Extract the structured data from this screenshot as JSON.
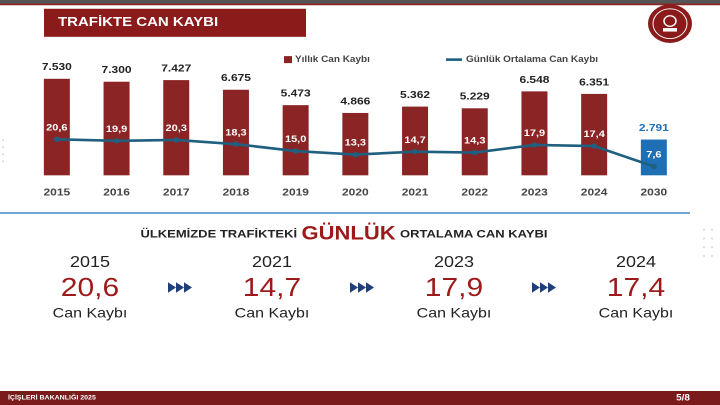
{
  "header": {
    "title": "TRAFİKTE CAN KAYBI"
  },
  "chart_data": {
    "type": "bar",
    "categories": [
      "2015",
      "2016",
      "2017",
      "2018",
      "2019",
      "2020",
      "2021",
      "2022",
      "2023",
      "2024",
      "2030"
    ],
    "ylim": [
      0,
      8000
    ],
    "y2lim": [
      0,
      50
    ],
    "series": [
      {
        "name": "Yıllık Can Kaybı",
        "type": "bar",
        "color": "#8b2525",
        "value_colors": [
          "#8b2525",
          "#8b2525",
          "#8b2525",
          "#8b2525",
          "#8b2525",
          "#8b2525",
          "#8b2525",
          "#8b2525",
          "#8b2525",
          "#8b2525",
          "#1f6fb5"
        ],
        "values": [
          7530,
          7300,
          7427,
          6675,
          5473,
          4866,
          5362,
          5229,
          6548,
          6351,
          2791
        ],
        "value_labels": [
          "7.530",
          "7.300",
          "7.427",
          "6.675",
          "5.473",
          "4.866",
          "5.362",
          "5.229",
          "6.548",
          "6.351",
          "2.791"
        ]
      },
      {
        "name": "Günlük Ortalama Can Kaybı",
        "type": "line",
        "axis": "y2",
        "color": "#1f5f80",
        "values": [
          20.6,
          19.9,
          20.3,
          18.3,
          15.0,
          13.3,
          14.7,
          14.3,
          17.9,
          17.4,
          7.6
        ],
        "value_labels": [
          "20,6",
          "19,9",
          "20,3",
          "18,3",
          "15,0",
          "13,3",
          "14,7",
          "14,3",
          "17,9",
          "17,4",
          "7,6"
        ]
      }
    ]
  },
  "summary": {
    "headline": [
      "ÜLKEMİZDE TRAFİKTEKİ",
      "GÜNLÜK",
      "ORTALAMA CAN KAYBI"
    ],
    "items": [
      {
        "year": "2015",
        "value": "20,6",
        "label": "Can Kaybı"
      },
      {
        "year": "2021",
        "value": "14,7",
        "label": "Can Kaybı"
      },
      {
        "year": "2023",
        "value": "17,9",
        "label": "Can Kaybı"
      },
      {
        "year": "2024",
        "value": "17,4",
        "label": "Can Kaybı"
      }
    ]
  },
  "footer": {
    "left": "İÇİŞLERİ BAKANLIĞI 2025",
    "page": "5/8"
  }
}
